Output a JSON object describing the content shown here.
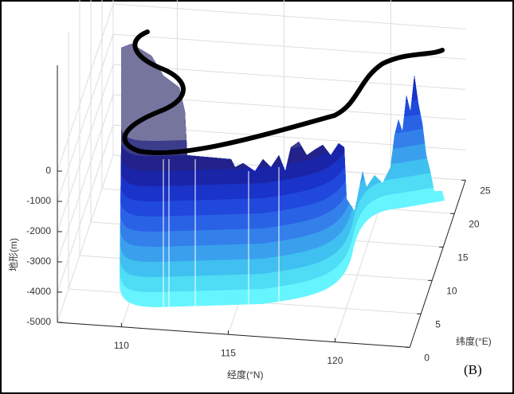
{
  "chart_data": {
    "type": "surface3d",
    "panel_label": "(B)",
    "xlabel": "经度(°N)",
    "ylabel": "纬度(°E)",
    "zlabel": "地形(m)",
    "xlim": [
      107,
      123.5
    ],
    "xticks": [
      110,
      115,
      120
    ],
    "ylim": [
      0,
      25
    ],
    "yticks": [
      0,
      5,
      10,
      15,
      20,
      25
    ],
    "zlim": [
      -5000,
      3500
    ],
    "zticks": [
      0,
      -1000,
      -2000,
      -3000,
      -4000,
      -5000
    ],
    "grid": true
  }
}
